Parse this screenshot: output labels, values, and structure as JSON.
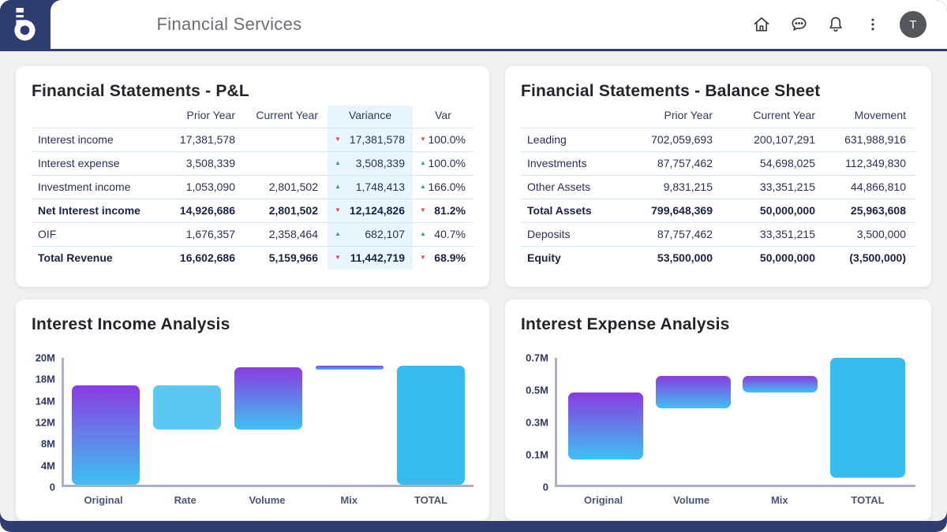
{
  "header": {
    "title": "Financial Services",
    "logo_letter": "b",
    "icons": [
      "home-icon",
      "chat-icon",
      "bell-icon",
      "kebab-menu-icon"
    ],
    "avatar_letter": "T"
  },
  "pnl": {
    "title": "Financial Statements - P&L",
    "columns": [
      "",
      "Prior Year",
      "Current Year",
      "Variance",
      "Var"
    ],
    "rows": [
      {
        "label": "Interest income",
        "bold": false,
        "prior": "17,381,578",
        "current": "",
        "variance": "17,381,578",
        "variance_dir": "down",
        "var_pct": "100.0%",
        "var_dir": "down"
      },
      {
        "label": "Interest expense",
        "bold": false,
        "prior": "3,508,339",
        "current": "",
        "variance": "3,508,339",
        "variance_dir": "up",
        "var_pct": "100.0%",
        "var_dir": "up"
      },
      {
        "label": "Investment income",
        "bold": false,
        "prior": "1,053,090",
        "current": "2,801,502",
        "variance": "1,748,413",
        "variance_dir": "up",
        "var_pct": "166.0%",
        "var_dir": "up"
      },
      {
        "label": "Net Interest income",
        "bold": true,
        "prior": "14,926,686",
        "current": "2,801,502",
        "variance": "12,124,826",
        "variance_dir": "down",
        "var_pct": "81.2%",
        "var_dir": "down"
      },
      {
        "label": "OIF",
        "bold": false,
        "prior": "1,676,357",
        "current": "2,358,464",
        "variance": "682,107",
        "variance_dir": "up",
        "var_pct": "40.7%",
        "var_dir": "up"
      },
      {
        "label": "Total Revenue",
        "bold": true,
        "prior": "16,602,686",
        "current": "5,159,966",
        "variance": "11,442,719",
        "variance_dir": "down",
        "var_pct": "68.9%",
        "var_dir": "down"
      }
    ]
  },
  "balance": {
    "title": "Financial Statements - Balance Sheet",
    "columns": [
      "",
      "Prior Year",
      "Current Year",
      "Movement"
    ],
    "rows": [
      {
        "label": "Leading",
        "bold": false,
        "prior": "702,059,693",
        "current": "200,107,291",
        "movement": "631,988,916"
      },
      {
        "label": "Investments",
        "bold": false,
        "prior": "87,757,462",
        "current": "54,698,025",
        "movement": "112,349,830"
      },
      {
        "label": "Other Assets",
        "bold": false,
        "prior": "9,831,215",
        "current": "33,351,215",
        "movement": "44,866,810"
      },
      {
        "label": "Total Assets",
        "bold": true,
        "prior": "799,648,369",
        "current": "50,000,000",
        "movement": "25,963,608"
      },
      {
        "label": "Deposits",
        "bold": false,
        "prior": "87,757,462",
        "current": "33,351,215",
        "movement": "3,500,000"
      },
      {
        "label": "Equity",
        "bold": true,
        "prior": "53,500,000",
        "current": "50,000,000",
        "movement": "(3,500,000)"
      }
    ]
  },
  "chart_data": [
    {
      "type": "bar",
      "variant": "waterfall",
      "title": "Interest Income Analysis",
      "categories": [
        "Original",
        "Rate",
        "Volume",
        "Mix",
        "TOTAL"
      ],
      "y_ticks": [
        "20M",
        "18M",
        "14M",
        "12M",
        "8M",
        "4M",
        "0"
      ],
      "ylim": [
        0,
        20
      ],
      "unit": "M",
      "grid": false,
      "bars": [
        {
          "label": "Original",
          "start": 0,
          "end": 15.6,
          "fill": "gradient"
        },
        {
          "label": "Rate",
          "start": 8.7,
          "end": 15.6,
          "fill": "lightblue"
        },
        {
          "label": "Volume",
          "start": 8.7,
          "end": 18.5,
          "fill": "gradient"
        },
        {
          "label": "Mix",
          "start": 18.1,
          "end": 18.7,
          "fill": "gradient"
        },
        {
          "label": "TOTAL",
          "start": 0,
          "end": 18.7,
          "fill": "cyan"
        }
      ]
    },
    {
      "type": "bar",
      "variant": "waterfall",
      "title": "Interest Expense Analysis",
      "categories": [
        "Original",
        "Volume",
        "Mix",
        "TOTAL"
      ],
      "y_ticks": [
        "0.7M",
        "0.5M",
        "0.3M",
        "0.1M",
        "0"
      ],
      "ylim": [
        0,
        0.7
      ],
      "unit": "M",
      "grid": false,
      "bars": [
        {
          "label": "Original",
          "start": 0.14,
          "end": 0.51,
          "fill": "gradient"
        },
        {
          "label": "Volume",
          "start": 0.42,
          "end": 0.6,
          "fill": "gradient"
        },
        {
          "label": "Mix",
          "start": 0.51,
          "end": 0.6,
          "fill": "gradient"
        },
        {
          "label": "TOTAL",
          "start": 0.04,
          "end": 0.7,
          "fill": "cyan"
        }
      ]
    }
  ],
  "colors": {
    "navy": "#2E3D6E",
    "body_bg": "#F0F0F1",
    "card_bg": "#FFFFFF",
    "variance_col_bg": "#E9F6FE",
    "row_border": "#CDE9F6",
    "negative_red": "#E2484B",
    "positive_green": "#2FA36D",
    "bar_gradient_top": "#8A3CE2",
    "bar_gradient_bottom": "#3EC1F1",
    "bar_lightblue": "#5CC8F2",
    "bar_cyan": "#36BCEF",
    "axis_line": "#AAB1C0"
  }
}
